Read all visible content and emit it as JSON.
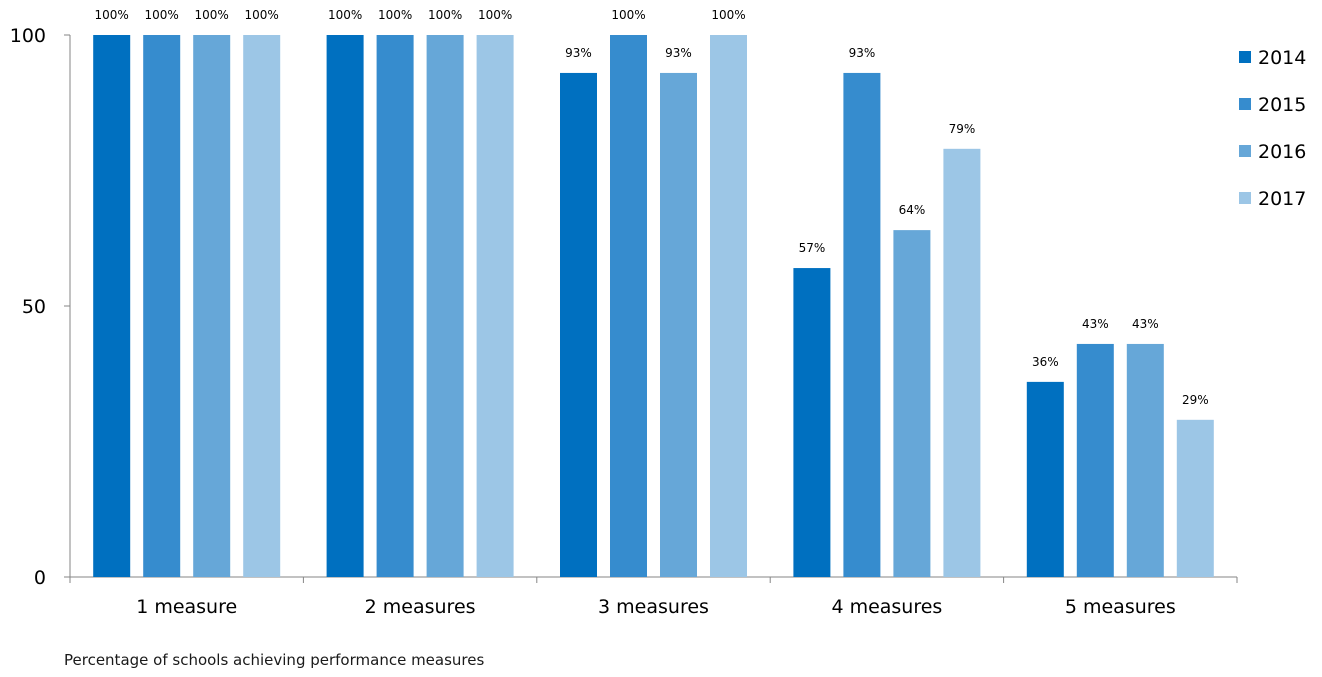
{
  "caption": "Percentage of schools achieving performance measures",
  "chart_data": {
    "type": "bar",
    "categories": [
      "1 measure",
      "2 measures",
      "3 measures",
      "4 measures",
      "5 measures"
    ],
    "series": [
      {
        "name": "2014",
        "color": "#0070C0",
        "values": [
          100,
          100,
          93,
          57,
          36
        ]
      },
      {
        "name": "2015",
        "color": "#368CCE",
        "values": [
          100,
          100,
          100,
          93,
          43
        ]
      },
      {
        "name": "2016",
        "color": "#66A7D8",
        "values": [
          100,
          100,
          93,
          64,
          43
        ]
      },
      {
        "name": "2017",
        "color": "#9CC6E6",
        "values": [
          100,
          100,
          100,
          79,
          29
        ]
      }
    ],
    "data_labels": [
      [
        "100%",
        "100%",
        "93%",
        "57%",
        "36%"
      ],
      [
        "100%",
        "100%",
        "100%",
        "93%",
        "43%"
      ],
      [
        "100%",
        "100%",
        "93%",
        "64%",
        "43%"
      ],
      [
        "100%",
        "100%",
        "100%",
        "79%",
        "29%"
      ]
    ],
    "yticks": [
      0,
      50,
      100
    ],
    "ylim": [
      0,
      100
    ],
    "grid": false,
    "legend": "right"
  }
}
